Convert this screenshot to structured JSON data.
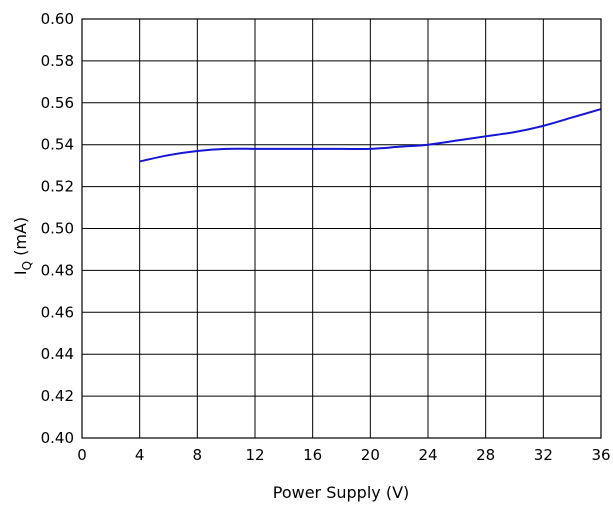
{
  "chart_data": {
    "type": "line",
    "title": "",
    "xlabel": "Power Supply (V)",
    "ylabel_main": "I",
    "ylabel_sub": "Q",
    "ylabel_unit": " (mA)",
    "xlim": [
      0,
      36
    ],
    "ylim": [
      0.4,
      0.6
    ],
    "xticks": [
      0,
      4,
      8,
      12,
      16,
      20,
      24,
      28,
      32,
      36
    ],
    "yticks": [
      0.4,
      0.42,
      0.44,
      0.46,
      0.48,
      0.5,
      0.52,
      0.54,
      0.56,
      0.58,
      0.6
    ],
    "xtick_labels": [
      "0",
      "4",
      "8",
      "12",
      "16",
      "20",
      "24",
      "28",
      "32",
      "36"
    ],
    "ytick_labels": [
      "0.40",
      "0.42",
      "0.44",
      "0.46",
      "0.48",
      "0.50",
      "0.52",
      "0.54",
      "0.56",
      "0.58",
      "0.60"
    ],
    "grid": true,
    "series": [
      {
        "color": "#1515d6",
        "x": [
          4,
          6,
          8,
          10,
          12,
          14,
          16,
          18,
          20,
          22,
          24,
          26,
          28,
          30,
          32,
          34,
          36
        ],
        "y": [
          0.532,
          0.535,
          0.537,
          0.538,
          0.538,
          0.538,
          0.538,
          0.538,
          0.538,
          0.539,
          0.54,
          0.542,
          0.544,
          0.546,
          0.549,
          0.553,
          0.557
        ]
      }
    ]
  }
}
